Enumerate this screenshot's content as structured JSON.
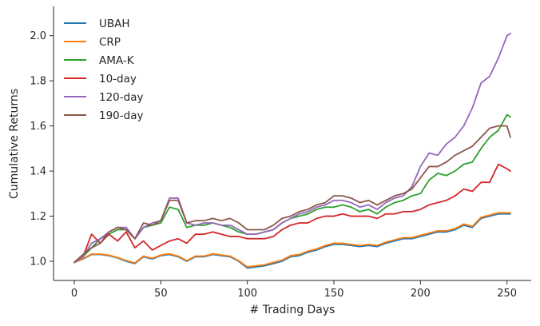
{
  "chart_data": {
    "type": "line",
    "title": "",
    "xlabel": "# Trading Days",
    "ylabel": "Cumulative Returns",
    "xlim": [
      -12,
      264
    ],
    "ylim": [
      0.915,
      2.13
    ],
    "xticks": [
      0,
      50,
      100,
      150,
      200,
      250
    ],
    "yticks": [
      1.0,
      1.2,
      1.4,
      1.6,
      1.8,
      2.0
    ],
    "xtick_labels": [
      "0",
      "50",
      "100",
      "150",
      "200",
      "250"
    ],
    "ytick_labels": [
      "1.0",
      "1.2",
      "1.4",
      "1.6",
      "1.8",
      "2.0"
    ],
    "grid": false,
    "legend_position": "top-left",
    "series": [
      {
        "name": "UBAH",
        "color": "#1f77b4",
        "x": [
          0,
          5,
          10,
          15,
          20,
          25,
          30,
          35,
          40,
          45,
          50,
          55,
          60,
          65,
          70,
          75,
          80,
          85,
          90,
          95,
          100,
          105,
          110,
          115,
          120,
          125,
          130,
          135,
          140,
          145,
          150,
          155,
          160,
          165,
          170,
          175,
          180,
          185,
          190,
          195,
          200,
          205,
          210,
          215,
          220,
          225,
          230,
          235,
          240,
          245,
          250,
          252
        ],
        "y": [
          0.995,
          1.01,
          1.03,
          1.03,
          1.025,
          1.015,
          1.0,
          0.99,
          1.02,
          1.01,
          1.025,
          1.03,
          1.02,
          1.0,
          1.02,
          1.02,
          1.03,
          1.025,
          1.02,
          1.0,
          0.97,
          0.975,
          0.98,
          0.99,
          1.0,
          1.02,
          1.025,
          1.04,
          1.05,
          1.065,
          1.075,
          1.075,
          1.07,
          1.065,
          1.07,
          1.065,
          1.08,
          1.09,
          1.1,
          1.1,
          1.11,
          1.12,
          1.13,
          1.13,
          1.14,
          1.16,
          1.15,
          1.19,
          1.2,
          1.21,
          1.21,
          1.21
        ]
      },
      {
        "name": "CRP",
        "color": "#ff7f0e",
        "x": [
          0,
          5,
          10,
          15,
          20,
          25,
          30,
          35,
          40,
          45,
          50,
          55,
          60,
          65,
          70,
          75,
          80,
          85,
          90,
          95,
          100,
          105,
          110,
          115,
          120,
          125,
          130,
          135,
          140,
          145,
          150,
          155,
          160,
          165,
          170,
          175,
          180,
          185,
          190,
          195,
          200,
          205,
          210,
          215,
          220,
          225,
          230,
          235,
          240,
          245,
          250,
          252
        ],
        "y": [
          0.995,
          1.012,
          1.032,
          1.032,
          1.027,
          1.017,
          1.003,
          0.993,
          1.023,
          1.013,
          1.028,
          1.033,
          1.023,
          1.003,
          1.023,
          1.023,
          1.033,
          1.028,
          1.023,
          1.003,
          0.975,
          0.98,
          0.985,
          0.995,
          1.005,
          1.025,
          1.03,
          1.045,
          1.055,
          1.07,
          1.08,
          1.08,
          1.075,
          1.07,
          1.075,
          1.07,
          1.085,
          1.095,
          1.105,
          1.105,
          1.115,
          1.125,
          1.135,
          1.135,
          1.145,
          1.165,
          1.155,
          1.195,
          1.205,
          1.215,
          1.215,
          1.215
        ]
      },
      {
        "name": "AMA-K",
        "color": "#2ca02c",
        "x": [
          0,
          5,
          10,
          15,
          20,
          25,
          30,
          35,
          40,
          45,
          50,
          55,
          60,
          65,
          70,
          75,
          80,
          85,
          90,
          95,
          100,
          105,
          110,
          115,
          120,
          125,
          130,
          135,
          140,
          145,
          150,
          155,
          160,
          165,
          170,
          175,
          180,
          185,
          190,
          195,
          200,
          205,
          210,
          215,
          220,
          225,
          230,
          235,
          240,
          245,
          250,
          252
        ],
        "y": [
          0.995,
          1.02,
          1.06,
          1.1,
          1.12,
          1.14,
          1.14,
          1.1,
          1.15,
          1.16,
          1.17,
          1.24,
          1.23,
          1.15,
          1.16,
          1.16,
          1.17,
          1.16,
          1.15,
          1.13,
          1.12,
          1.12,
          1.13,
          1.14,
          1.17,
          1.19,
          1.2,
          1.21,
          1.23,
          1.24,
          1.24,
          1.25,
          1.24,
          1.22,
          1.23,
          1.21,
          1.24,
          1.26,
          1.27,
          1.29,
          1.3,
          1.36,
          1.39,
          1.38,
          1.4,
          1.43,
          1.44,
          1.5,
          1.55,
          1.58,
          1.65,
          1.64
        ]
      },
      {
        "name": "10-day",
        "color": "#d62728",
        "x": [
          0,
          5,
          10,
          15,
          20,
          25,
          30,
          35,
          40,
          45,
          50,
          55,
          60,
          65,
          70,
          75,
          80,
          85,
          90,
          95,
          100,
          105,
          110,
          115,
          120,
          125,
          130,
          135,
          140,
          145,
          150,
          155,
          160,
          165,
          170,
          175,
          180,
          185,
          190,
          195,
          200,
          205,
          210,
          215,
          220,
          225,
          230,
          235,
          240,
          245,
          250,
          252
        ],
        "y": [
          0.995,
          1.02,
          1.12,
          1.08,
          1.12,
          1.09,
          1.13,
          1.06,
          1.09,
          1.05,
          1.07,
          1.09,
          1.1,
          1.08,
          1.12,
          1.12,
          1.13,
          1.12,
          1.11,
          1.11,
          1.1,
          1.1,
          1.1,
          1.11,
          1.14,
          1.16,
          1.17,
          1.17,
          1.19,
          1.2,
          1.2,
          1.21,
          1.2,
          1.2,
          1.2,
          1.19,
          1.21,
          1.21,
          1.22,
          1.22,
          1.23,
          1.25,
          1.26,
          1.27,
          1.29,
          1.32,
          1.31,
          1.35,
          1.35,
          1.43,
          1.41,
          1.4
        ]
      },
      {
        "name": "120-day",
        "color": "#9467bd",
        "x": [
          0,
          5,
          10,
          15,
          20,
          25,
          30,
          35,
          40,
          45,
          50,
          55,
          60,
          65,
          70,
          75,
          80,
          85,
          90,
          95,
          100,
          105,
          110,
          115,
          120,
          125,
          130,
          135,
          140,
          145,
          150,
          155,
          160,
          165,
          170,
          175,
          180,
          185,
          190,
          195,
          200,
          205,
          210,
          215,
          220,
          225,
          230,
          235,
          240,
          245,
          250,
          252
        ],
        "y": [
          0.995,
          1.02,
          1.08,
          1.1,
          1.13,
          1.15,
          1.15,
          1.1,
          1.15,
          1.17,
          1.18,
          1.28,
          1.28,
          1.17,
          1.16,
          1.17,
          1.17,
          1.16,
          1.16,
          1.14,
          1.12,
          1.12,
          1.13,
          1.14,
          1.17,
          1.19,
          1.21,
          1.22,
          1.24,
          1.25,
          1.27,
          1.27,
          1.26,
          1.24,
          1.25,
          1.23,
          1.26,
          1.28,
          1.29,
          1.33,
          1.42,
          1.48,
          1.47,
          1.52,
          1.55,
          1.6,
          1.68,
          1.79,
          1.82,
          1.9,
          2.0,
          2.01
        ]
      },
      {
        "name": "190-day",
        "color": "#8c564b",
        "x": [
          0,
          5,
          10,
          15,
          20,
          25,
          30,
          35,
          40,
          45,
          50,
          55,
          60,
          65,
          70,
          75,
          80,
          85,
          90,
          95,
          100,
          105,
          110,
          115,
          120,
          125,
          130,
          135,
          140,
          145,
          150,
          155,
          160,
          165,
          170,
          175,
          180,
          185,
          190,
          195,
          200,
          205,
          210,
          215,
          220,
          225,
          230,
          235,
          240,
          245,
          250,
          252
        ],
        "y": [
          0.995,
          1.03,
          1.06,
          1.08,
          1.13,
          1.15,
          1.14,
          1.1,
          1.17,
          1.16,
          1.18,
          1.27,
          1.27,
          1.17,
          1.18,
          1.18,
          1.19,
          1.18,
          1.19,
          1.17,
          1.14,
          1.14,
          1.14,
          1.16,
          1.19,
          1.2,
          1.22,
          1.23,
          1.25,
          1.26,
          1.29,
          1.29,
          1.28,
          1.26,
          1.27,
          1.25,
          1.27,
          1.29,
          1.3,
          1.32,
          1.37,
          1.42,
          1.42,
          1.44,
          1.47,
          1.49,
          1.51,
          1.55,
          1.59,
          1.6,
          1.6,
          1.55
        ]
      }
    ]
  }
}
